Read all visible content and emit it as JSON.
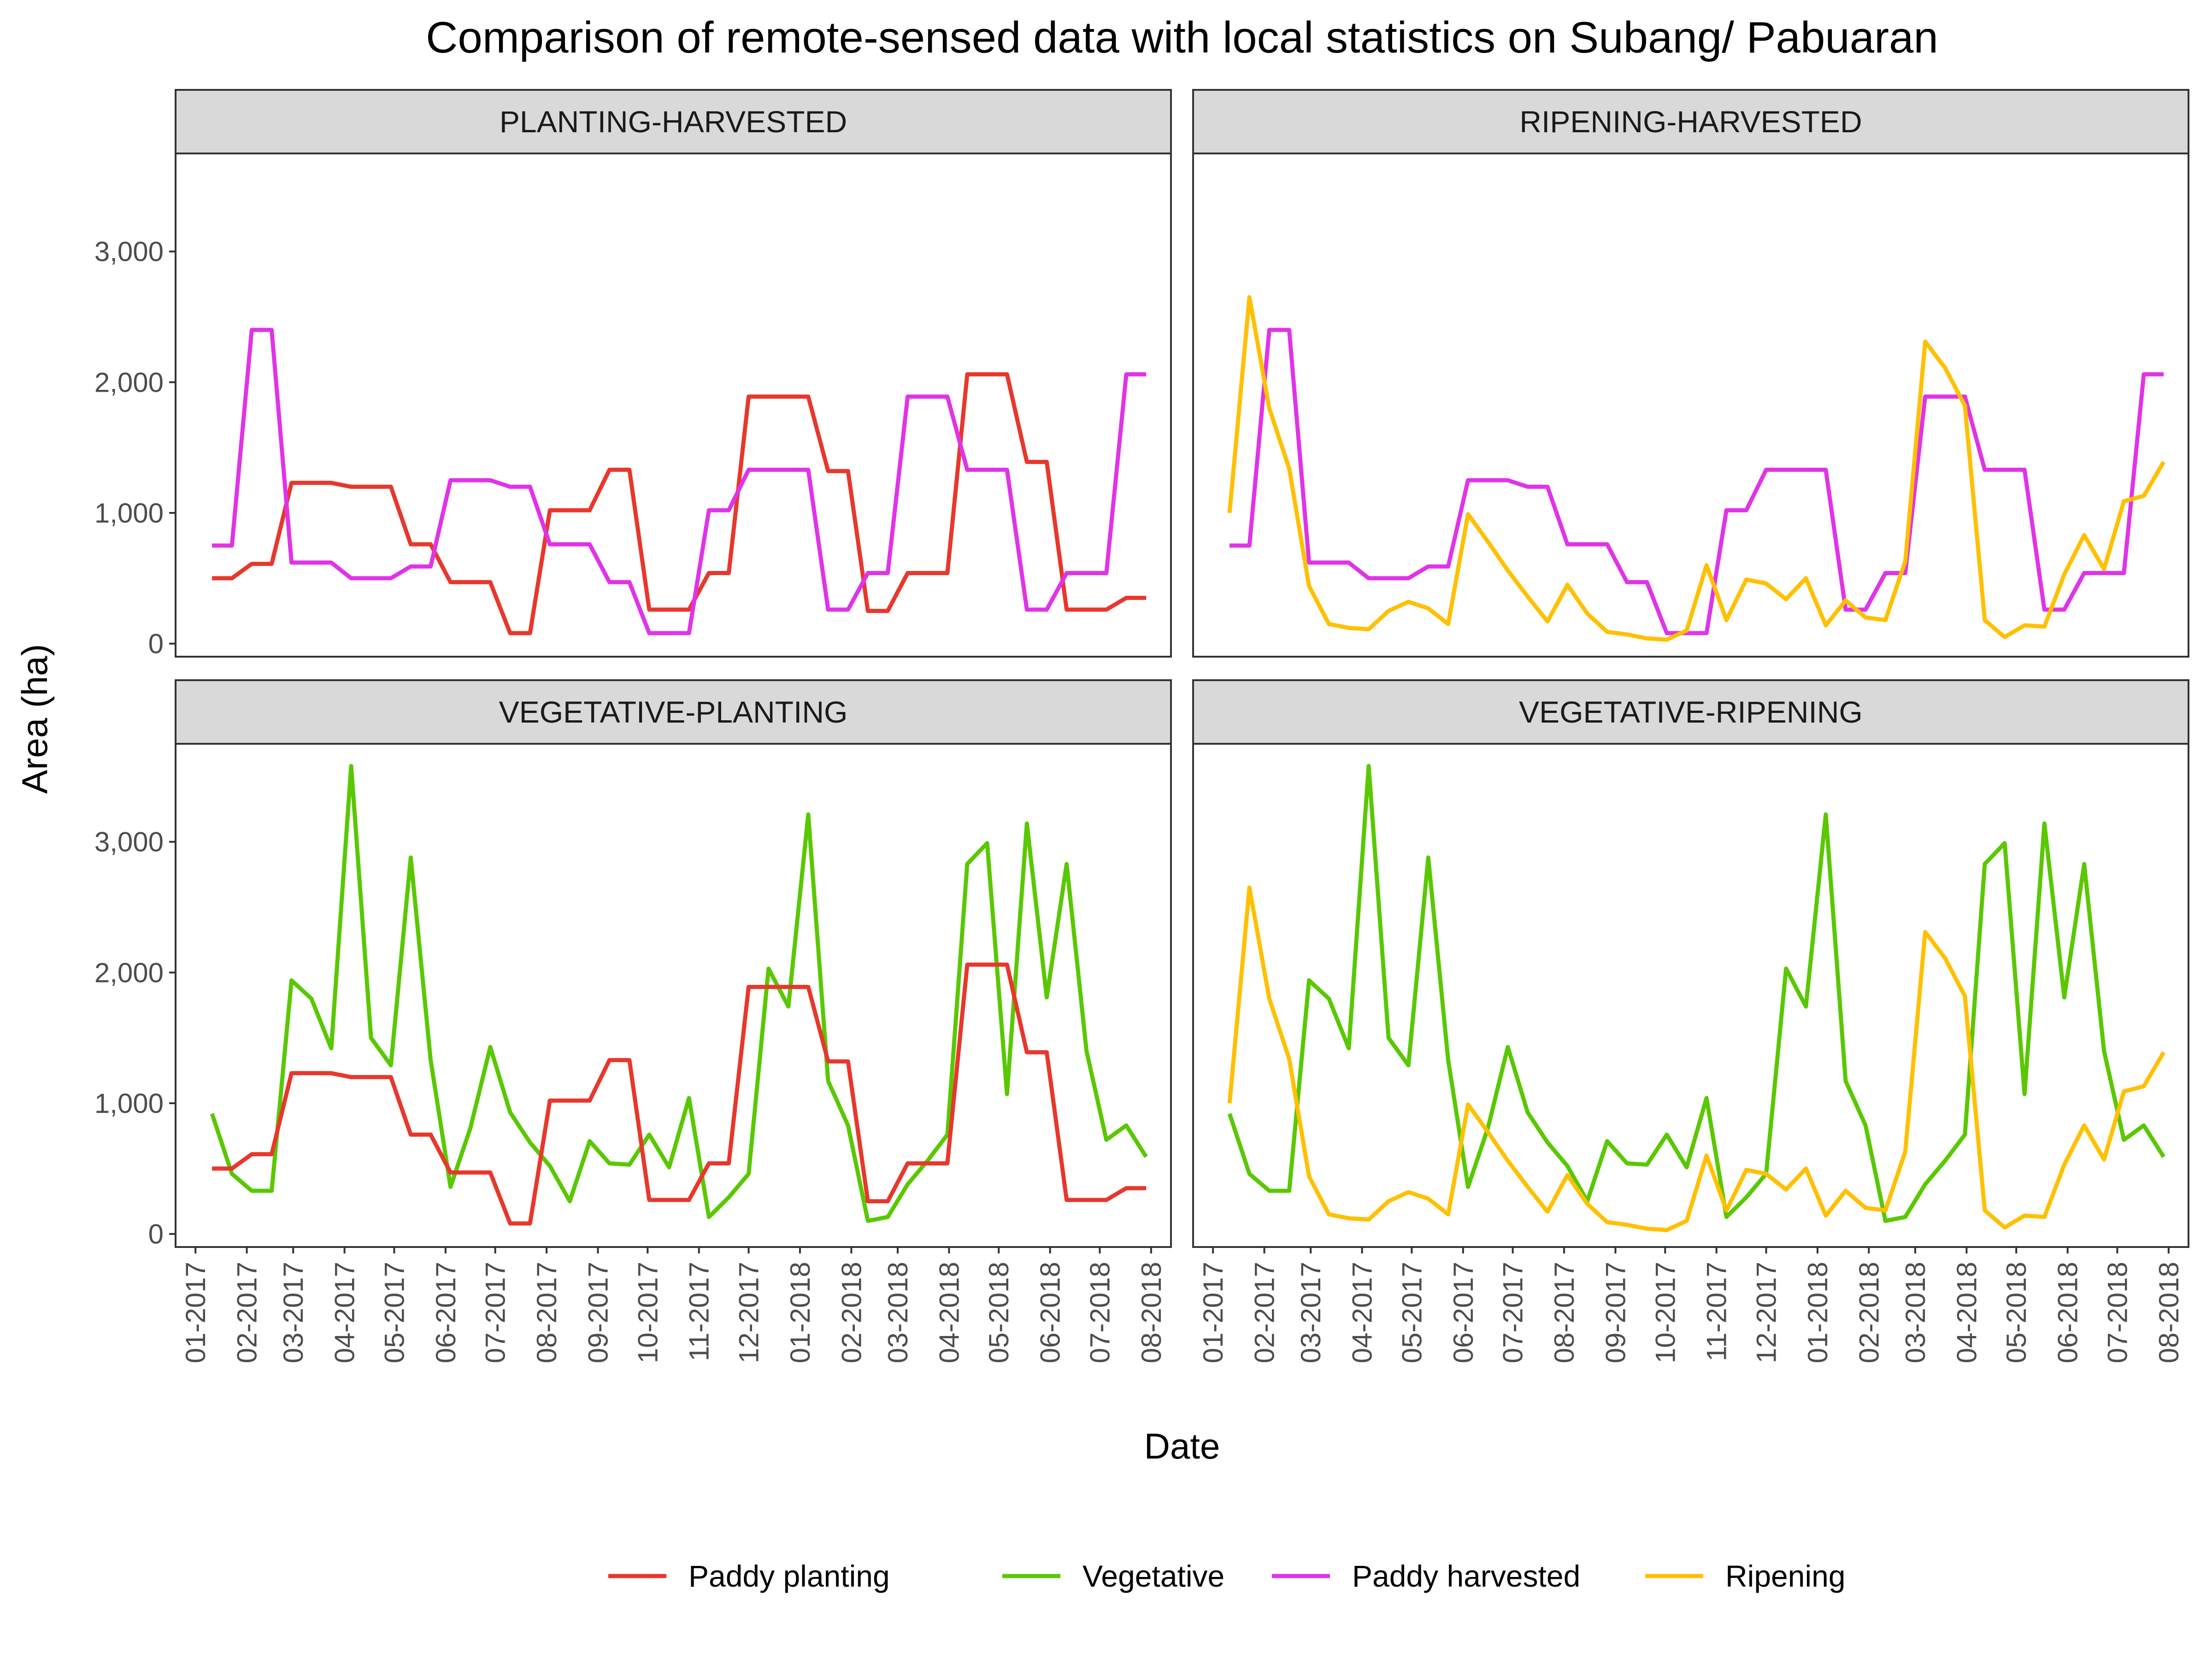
{
  "chart_data": {
    "type": "line",
    "title": "Comparison of remote-sensed data with local statistics on Subang/ Pabuaran",
    "xlabel": "Date",
    "ylabel": "Area (ha)",
    "ylim": [
      -100,
      3750
    ],
    "y_ticks": [
      0,
      1000,
      2000,
      3000
    ],
    "y_tick_labels": [
      "0",
      "1,000",
      "2,000",
      "3,000"
    ],
    "x_ticks": [
      "2017-01-01",
      "2017-02-01",
      "2017-03-01",
      "2017-04-01",
      "2017-05-01",
      "2017-06-01",
      "2017-07-01",
      "2017-08-01",
      "2017-09-01",
      "2017-10-01",
      "2017-11-01",
      "2017-12-01",
      "2018-01-01",
      "2018-02-01",
      "2018-03-01",
      "2018-04-01",
      "2018-05-01",
      "2018-06-01",
      "2018-07-01",
      "2018-08-01"
    ],
    "x_tick_labels": [
      "01-2017",
      "02-2017",
      "03-2017",
      "04-2017",
      "05-2017",
      "06-2017",
      "07-2017",
      "08-2017",
      "09-2017",
      "10-2017",
      "11-2017",
      "12-2017",
      "01-2018",
      "02-2018",
      "03-2018",
      "04-2018",
      "05-2018",
      "06-2018",
      "07-2018",
      "08-2018"
    ],
    "x_dates": [
      "2017-01-11",
      "2017-01-23",
      "2017-02-04",
      "2017-02-16",
      "2017-02-28",
      "2017-03-12",
      "2017-03-24",
      "2017-04-05",
      "2017-04-17",
      "2017-04-29",
      "2017-05-11",
      "2017-05-23",
      "2017-06-04",
      "2017-06-16",
      "2017-06-28",
      "2017-07-10",
      "2017-07-22",
      "2017-08-03",
      "2017-08-15",
      "2017-08-27",
      "2017-09-08",
      "2017-09-20",
      "2017-10-02",
      "2017-10-14",
      "2017-10-26",
      "2017-11-07",
      "2017-11-19",
      "2017-12-01",
      "2017-12-13",
      "2017-12-25",
      "2018-01-06",
      "2018-01-18",
      "2018-01-30",
      "2018-02-11",
      "2018-02-23",
      "2018-03-07",
      "2018-03-19",
      "2018-03-31",
      "2018-04-12",
      "2018-04-24",
      "2018-05-06",
      "2018-05-18",
      "2018-05-30",
      "2018-06-11",
      "2018-06-23",
      "2018-07-05",
      "2018-07-17",
      "2018-07-29"
    ],
    "series": [
      {
        "name": "Paddy planting",
        "color": "#e8372c",
        "values": [
          500,
          500,
          610,
          610,
          1230,
          1230,
          1230,
          1200,
          1200,
          1200,
          760,
          760,
          470,
          470,
          470,
          80,
          80,
          1020,
          1020,
          1020,
          1330,
          1330,
          260,
          260,
          260,
          540,
          540,
          1890,
          1890,
          1890,
          1890,
          1320,
          1320,
          250,
          250,
          540,
          540,
          540,
          2060,
          2060,
          2060,
          1390,
          1390,
          260,
          260,
          260,
          350,
          350
        ]
      },
      {
        "name": "Vegetative",
        "color": "#59c800",
        "values": [
          920,
          460,
          330,
          330,
          1940,
          1800,
          1420,
          3580,
          1500,
          1290,
          2880,
          1330,
          360,
          810,
          1430,
          930,
          700,
          520,
          250,
          710,
          540,
          530,
          760,
          510,
          1040,
          130,
          280,
          460,
          2030,
          1740,
          3210,
          1170,
          830,
          100,
          130,
          380,
          560,
          760,
          2830,
          2990,
          1070,
          3140,
          1810,
          2830,
          1400,
          720,
          830,
          590
        ]
      },
      {
        "name": "Paddy harvested",
        "color": "#e033e8",
        "values": [
          750,
          750,
          2400,
          2400,
          620,
          620,
          620,
          500,
          500,
          500,
          590,
          590,
          1250,
          1250,
          1250,
          1200,
          1200,
          760,
          760,
          760,
          470,
          470,
          80,
          80,
          80,
          1020,
          1020,
          1330,
          1330,
          1330,
          1330,
          260,
          260,
          540,
          540,
          1890,
          1890,
          1890,
          1330,
          1330,
          1330,
          260,
          260,
          540,
          540,
          540,
          2060,
          2060
        ]
      },
      {
        "name": "Ripening",
        "color": "#ffc000",
        "values": [
          1000,
          2650,
          1800,
          1340,
          440,
          150,
          120,
          110,
          250,
          320,
          270,
          150,
          990,
          780,
          560,
          360,
          170,
          450,
          230,
          90,
          70,
          40,
          30,
          100,
          600,
          180,
          490,
          460,
          340,
          500,
          140,
          330,
          200,
          180,
          630,
          2310,
          2110,
          1820,
          180,
          50,
          140,
          130,
          530,
          830,
          570,
          1090,
          1130,
          1390
        ]
      }
    ],
    "panels": [
      {
        "label": "PLANTING-HARVESTED",
        "series": [
          0,
          2
        ]
      },
      {
        "label": "RIPENING-HARVESTED",
        "series": [
          2,
          3
        ]
      },
      {
        "label": "VEGETATIVE-PLANTING",
        "series": [
          1,
          0
        ]
      },
      {
        "label": "VEGETATIVE-RIPENING",
        "series": [
          1,
          3
        ]
      }
    ],
    "legend": {
      "position": "bottom",
      "entries": [
        "Paddy planting",
        "Vegetative",
        "Paddy harvested",
        "Ripening"
      ]
    },
    "grid": false
  }
}
